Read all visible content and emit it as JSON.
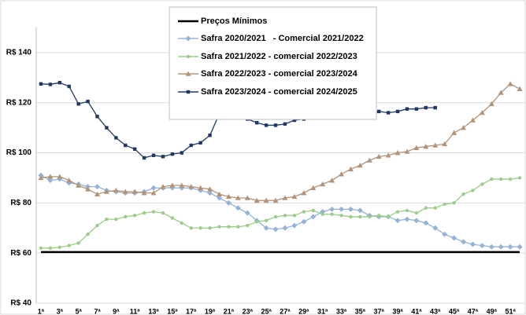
{
  "chart_data": {
    "type": "line",
    "categories": [
      "1ª",
      null,
      "3ª",
      null,
      "5ª",
      null,
      "7ª",
      null,
      "9ª",
      null,
      "11ª",
      null,
      "13ª",
      null,
      "15ª",
      null,
      "17ª",
      null,
      "19ª",
      null,
      "21ª",
      null,
      "23ª",
      null,
      "25ª",
      null,
      "27ª",
      null,
      "29ª",
      null,
      "31ª",
      null,
      "33ª",
      null,
      "35ª",
      null,
      "37ª",
      null,
      "39ª",
      null,
      "41ª",
      null,
      "43ª",
      null,
      "45ª",
      null,
      "47ª",
      null,
      "49ª",
      null,
      "51ª",
      null
    ],
    "ylim": [
      40,
      150
    ],
    "yticks": [
      {
        "value": 40,
        "label": "R$ 40"
      },
      {
        "value": 60,
        "label": "R$ 60"
      },
      {
        "value": 80,
        "label": "R$ 80"
      },
      {
        "value": 100,
        "label": "R$ 100"
      },
      {
        "value": 120,
        "label": "R$ 120"
      },
      {
        "value": 140,
        "label": "R$ 140"
      }
    ],
    "grid": true,
    "legend": "top",
    "series": [
      {
        "name": "Preços Mínimos",
        "color": "#000000",
        "marker": "none",
        "values": [
          60.4,
          60.4,
          60.4,
          60.4,
          60.4,
          60.4,
          60.4,
          60.4,
          60.4,
          60.4,
          60.4,
          60.4,
          60.4,
          60.4,
          60.4,
          60.4,
          60.4,
          60.4,
          60.4,
          60.4,
          60.4,
          60.4,
          60.4,
          60.4,
          60.4,
          60.4,
          60.4,
          60.4,
          60.4,
          60.4,
          60.4,
          60.4,
          60.4,
          60.4,
          60.4,
          60.4,
          60.4,
          60.4,
          60.4,
          60.4,
          60.4,
          60.4,
          60.4,
          60.4,
          60.4,
          60.4,
          60.4,
          60.4,
          60.4,
          60.4,
          60.4,
          60.4
        ]
      },
      {
        "name": "Safra 2020/2021   - Comercial 2021/2022",
        "color": "#95b3d7",
        "marker": "diamond",
        "values": [
          91,
          89,
          89.5,
          88,
          87.5,
          86.5,
          86.5,
          85,
          84.5,
          84,
          84,
          84.5,
          86,
          86,
          86,
          86,
          86,
          85,
          84,
          82,
          80,
          78,
          76,
          73,
          70,
          69.5,
          70,
          71,
          72.5,
          74.5,
          76.5,
          77.5,
          77.5,
          77.5,
          77,
          75,
          74.5,
          74.5,
          73,
          73.5,
          73,
          72,
          70,
          67.5,
          66,
          64.5,
          63.5,
          63,
          62.5,
          62.5,
          62.5,
          62.5
        ]
      },
      {
        "name": "Safra 2021/2022 - comercial 2022/2023",
        "color": "#9bcc8a",
        "marker": "circle",
        "values": [
          62,
          62,
          62.3,
          63,
          64,
          67.5,
          71,
          73.5,
          73.5,
          74.5,
          75,
          76,
          76.5,
          76,
          74,
          72,
          70,
          70,
          70,
          70.5,
          70.5,
          70.5,
          71,
          72.5,
          73,
          74.5,
          75,
          75,
          76.5,
          77,
          75.5,
          75.5,
          75,
          74.5,
          74.5,
          74.5,
          75,
          74.5,
          76.5,
          77,
          76,
          78,
          78,
          79.5,
          80,
          83.5,
          85,
          87.5,
          89.5,
          89.5,
          89.5,
          90
        ]
      },
      {
        "name": "Safra 2022/2023 - comercial 2023/2024",
        "color": "#b39378",
        "marker": "triangle",
        "values": [
          90,
          90.5,
          90.5,
          89,
          87,
          85.5,
          83.5,
          84.5,
          85,
          84.5,
          84.5,
          84,
          84,
          86.5,
          87,
          87,
          86.5,
          86,
          85.5,
          83.5,
          82.5,
          82,
          82,
          81,
          81,
          81,
          82,
          82.5,
          84,
          86,
          87.5,
          89,
          91.5,
          93.5,
          95,
          97,
          98.5,
          99,
          100,
          100.5,
          102,
          102.5,
          103,
          103.5,
          108,
          110,
          113,
          116,
          119.5,
          124,
          127.5,
          125.5
        ]
      },
      {
        "name": "Safra 2023/2024 - comercial 2024/2025",
        "color": "#1f3864",
        "marker": "square",
        "values": [
          127.5,
          127.3,
          128,
          126.5,
          119.5,
          120.5,
          114.5,
          110,
          106,
          103,
          101.5,
          98,
          99,
          98.5,
          99.5,
          100,
          103,
          104,
          107,
          115.5,
          117.5,
          118.5,
          113.5,
          112,
          111,
          111,
          111.5,
          113,
          113.5,
          115,
          115.5,
          116,
          115.5,
          115.5,
          115.5,
          115.5,
          116.5,
          116,
          116.5,
          117.5,
          117.5,
          118,
          118,
          null,
          null,
          null,
          null,
          null,
          null,
          null,
          null,
          null
        ]
      }
    ]
  }
}
